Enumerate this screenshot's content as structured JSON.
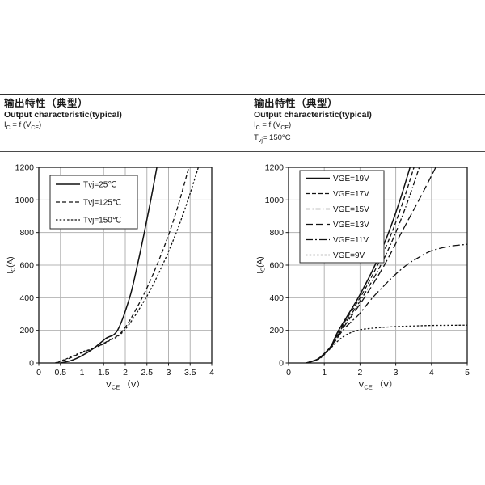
{
  "page": {
    "background": "#ffffff",
    "rule_color": "#2f2f2f",
    "grid_color": "#b3b3b3",
    "curve_color": "#111111"
  },
  "headers": {
    "left": {
      "title_zh": "输出特性（典型）",
      "title_en": "Output characteristic(typical)",
      "formula_parts": [
        [
          "I",
          ""
        ],
        [
          "C",
          "sub"
        ],
        [
          " = f (V",
          ""
        ],
        [
          "CE",
          "sub"
        ],
        [
          ")",
          ""
        ]
      ]
    },
    "right": {
      "title_zh": "输出特性（典型）",
      "title_en": "Output characteristic(typical)",
      "formula_parts": [
        [
          "I",
          ""
        ],
        [
          "C",
          "sub"
        ],
        [
          " = f (V",
          ""
        ],
        [
          "CE",
          "sub"
        ],
        [
          ")",
          ""
        ]
      ],
      "condition_parts": [
        [
          "T",
          ""
        ],
        [
          "vj",
          "sub"
        ],
        [
          "= 150°C",
          ""
        ]
      ]
    }
  },
  "chart_data": [
    {
      "id": "left-output-chart",
      "type": "line",
      "title": "Output characteristic(typical)",
      "conditions": "Ic = f (VCE)",
      "xlabel": "VCE (V)",
      "ylabel": "IC(A)",
      "xlabel_parts": [
        [
          "V",
          ""
        ],
        [
          "CE",
          "sub"
        ],
        [
          " （V）",
          ""
        ]
      ],
      "ylabel_parts": [
        [
          "I",
          ""
        ],
        [
          "C",
          "sub"
        ],
        [
          "(A)",
          ""
        ]
      ],
      "xlim": [
        0,
        4
      ],
      "ylim": [
        0,
        1200
      ],
      "xticks": [
        "0",
        "0.5",
        "1",
        "1.5",
        "2",
        "2.5",
        "3",
        "3.5",
        "4"
      ],
      "yticks": [
        "0",
        "200",
        "400",
        "600",
        "800",
        "1000",
        "1200"
      ],
      "grid": true,
      "legend_position": "top-left",
      "series": [
        {
          "name": "Tvj=25℃",
          "dash": "solid",
          "points": [
            [
              0.5,
              0
            ],
            [
              0.75,
              15
            ],
            [
              1.0,
              45
            ],
            [
              1.27,
              90
            ],
            [
              1.55,
              150
            ],
            [
              1.82,
              200
            ],
            [
              2.1,
              400
            ],
            [
              2.28,
              600
            ],
            [
              2.44,
              800
            ],
            [
              2.59,
              1000
            ],
            [
              2.73,
              1200
            ]
          ]
        },
        {
          "name": "Tvj=125℃",
          "dash": "dash",
          "points": [
            [
              0.4,
              0
            ],
            [
              0.7,
              28
            ],
            [
              1.0,
              64
            ],
            [
              1.27,
              90
            ],
            [
              1.6,
              135
            ],
            [
              1.95,
              200
            ],
            [
              2.39,
              400
            ],
            [
              2.73,
              600
            ],
            [
              3.02,
              800
            ],
            [
              3.26,
              1000
            ],
            [
              3.47,
              1200
            ]
          ]
        },
        {
          "name": "Tvj=150℃",
          "dash": "fine-dash",
          "points": [
            [
              0.38,
              0
            ],
            [
              0.7,
              32
            ],
            [
              1.0,
              68
            ],
            [
              1.27,
              90
            ],
            [
              1.6,
              132
            ],
            [
              1.98,
              200
            ],
            [
              2.48,
              400
            ],
            [
              2.86,
              600
            ],
            [
              3.18,
              800
            ],
            [
              3.45,
              1000
            ],
            [
              3.69,
              1200
            ]
          ]
        }
      ]
    },
    {
      "id": "right-output-chart",
      "type": "line",
      "title": "Output characteristic(typical)",
      "conditions": "Tvj = 150°C",
      "xlabel": "VCE (V)",
      "ylabel": "IC(A)",
      "xlabel_parts": [
        [
          "V",
          ""
        ],
        [
          "CE",
          "sub"
        ],
        [
          " （V）",
          ""
        ]
      ],
      "ylabel_parts": [
        [
          "I",
          ""
        ],
        [
          "C",
          "sub"
        ],
        [
          "(A)",
          ""
        ]
      ],
      "xlim": [
        0,
        5
      ],
      "ylim": [
        0,
        1200
      ],
      "xticks": [
        "0",
        "1",
        "2",
        "3",
        "4",
        "5"
      ],
      "yticks": [
        "0",
        "200",
        "400",
        "600",
        "800",
        "1000",
        "1200"
      ],
      "grid": true,
      "legend_position": "top-left",
      "series": [
        {
          "name": "VGE=19V",
          "dash": "solid",
          "points": [
            [
              0.5,
              0
            ],
            [
              0.8,
              22
            ],
            [
              1.0,
              58
            ],
            [
              1.2,
              108
            ],
            [
              1.4,
              200
            ],
            [
              1.95,
              400
            ],
            [
              2.42,
              600
            ],
            [
              2.8,
              800
            ],
            [
              3.12,
              1000
            ],
            [
              3.4,
              1200
            ]
          ]
        },
        {
          "name": "VGE=17V",
          "dash": "dash",
          "points": [
            [
              0.5,
              0
            ],
            [
              0.8,
              22
            ],
            [
              1.0,
              57
            ],
            [
              1.2,
              106
            ],
            [
              1.42,
              200
            ],
            [
              2.0,
              400
            ],
            [
              2.49,
              600
            ],
            [
              2.89,
              800
            ],
            [
              3.22,
              1000
            ],
            [
              3.51,
              1200
            ]
          ]
        },
        {
          "name": "VGE=15V",
          "dash": "dash-dot",
          "points": [
            [
              0.5,
              0
            ],
            [
              0.8,
              21
            ],
            [
              1.0,
              56
            ],
            [
              1.2,
              105
            ],
            [
              1.45,
              200
            ],
            [
              2.06,
              400
            ],
            [
              2.58,
              600
            ],
            [
              3.0,
              800
            ],
            [
              3.35,
              1000
            ],
            [
              3.66,
              1200
            ]
          ]
        },
        {
          "name": "VGE=13V",
          "dash": "long-dash",
          "points": [
            [
              0.5,
              0
            ],
            [
              0.8,
              21
            ],
            [
              1.0,
              55
            ],
            [
              1.2,
              103
            ],
            [
              1.48,
              200
            ],
            [
              2.12,
              400
            ],
            [
              2.68,
              600
            ],
            [
              3.16,
              800
            ],
            [
              3.65,
              1000
            ],
            [
              4.12,
              1200
            ]
          ]
        },
        {
          "name": "VGE=11V",
          "dash": "long-dash-dot",
          "points": [
            [
              0.5,
              0
            ],
            [
              0.8,
              20
            ],
            [
              1.0,
              54
            ],
            [
              1.2,
              100
            ],
            [
              1.52,
              200
            ],
            [
              1.8,
              262
            ],
            [
              2.0,
              305
            ],
            [
              2.35,
              400
            ],
            [
              2.7,
              480
            ],
            [
              3.0,
              545
            ],
            [
              3.3,
              600
            ],
            [
              3.6,
              642
            ],
            [
              4.0,
              688
            ],
            [
              4.5,
              715
            ],
            [
              5.0,
              728
            ]
          ]
        },
        {
          "name": "VGE=9V",
          "dash": "fine-dash",
          "points": [
            [
              0.5,
              0
            ],
            [
              0.8,
              18
            ],
            [
              1.0,
              50
            ],
            [
              1.2,
              95
            ],
            [
              1.45,
              148
            ],
            [
              1.7,
              182
            ],
            [
              2.0,
              203
            ],
            [
              2.3,
              212
            ],
            [
              2.6,
              218
            ],
            [
              3.0,
              223
            ],
            [
              3.5,
              227
            ],
            [
              4.0,
              230
            ],
            [
              4.5,
              231
            ],
            [
              5.0,
              232
            ]
          ]
        }
      ]
    }
  ]
}
